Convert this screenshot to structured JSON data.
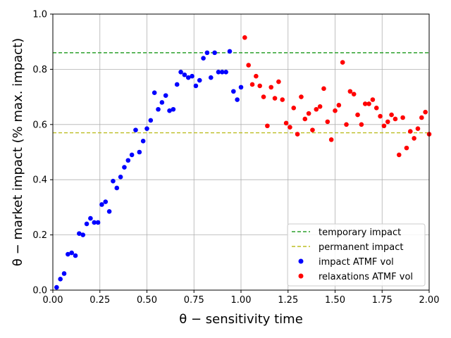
{
  "chart_data": {
    "type": "scatter",
    "xlabel": "θ − sensitivity time",
    "ylabel": "θ − market impact (% max. impact)",
    "xlim": [
      0,
      2
    ],
    "ylim": [
      0,
      1
    ],
    "grid": true,
    "legend_position": "lower-right",
    "x_ticks": [
      "0.00",
      "0.25",
      "0.50",
      "0.75",
      "1.00",
      "1.25",
      "1.50",
      "1.75",
      "2.00"
    ],
    "y_ticks": [
      "0.0",
      "0.2",
      "0.4",
      "0.6",
      "0.8",
      "1.0"
    ],
    "hlines": [
      {
        "name": "temporary impact",
        "y": 0.86,
        "color": "#2ca02c",
        "style": "dashed"
      },
      {
        "name": "permanent impact",
        "y": 0.57,
        "color": "#bcbd22",
        "style": "dashed"
      }
    ],
    "series": [
      {
        "name": "impact ATMF vol",
        "color": "#0000ff",
        "points": [
          [
            0.02,
            0.01
          ],
          [
            0.04,
            0.04
          ],
          [
            0.06,
            0.06
          ],
          [
            0.08,
            0.13
          ],
          [
            0.1,
            0.135
          ],
          [
            0.12,
            0.125
          ],
          [
            0.14,
            0.205
          ],
          [
            0.16,
            0.2
          ],
          [
            0.18,
            0.24
          ],
          [
            0.2,
            0.26
          ],
          [
            0.22,
            0.245
          ],
          [
            0.24,
            0.245
          ],
          [
            0.26,
            0.31
          ],
          [
            0.28,
            0.32
          ],
          [
            0.3,
            0.285
          ],
          [
            0.32,
            0.395
          ],
          [
            0.34,
            0.37
          ],
          [
            0.36,
            0.41
          ],
          [
            0.38,
            0.445
          ],
          [
            0.4,
            0.47
          ],
          [
            0.42,
            0.49
          ],
          [
            0.44,
            0.58
          ],
          [
            0.46,
            0.5
          ],
          [
            0.48,
            0.54
          ],
          [
            0.5,
            0.585
          ],
          [
            0.52,
            0.615
          ],
          [
            0.54,
            0.715
          ],
          [
            0.56,
            0.655
          ],
          [
            0.58,
            0.68
          ],
          [
            0.6,
            0.705
          ],
          [
            0.62,
            0.65
          ],
          [
            0.64,
            0.655
          ],
          [
            0.66,
            0.745
          ],
          [
            0.68,
            0.79
          ],
          [
            0.7,
            0.78
          ],
          [
            0.72,
            0.77
          ],
          [
            0.74,
            0.775
          ],
          [
            0.76,
            0.74
          ],
          [
            0.78,
            0.76
          ],
          [
            0.8,
            0.84
          ],
          [
            0.82,
            0.86
          ],
          [
            0.84,
            0.77
          ],
          [
            0.86,
            0.86
          ],
          [
            0.88,
            0.79
          ],
          [
            0.9,
            0.79
          ],
          [
            0.92,
            0.79
          ],
          [
            0.94,
            0.865
          ],
          [
            0.96,
            0.72
          ],
          [
            0.98,
            0.69
          ],
          [
            1.0,
            0.735
          ]
        ]
      },
      {
        "name": "relaxations ATMF vol",
        "color": "#ff0000",
        "points": [
          [
            1.02,
            0.915
          ],
          [
            1.04,
            0.815
          ],
          [
            1.06,
            0.745
          ],
          [
            1.08,
            0.775
          ],
          [
            1.1,
            0.74
          ],
          [
            1.12,
            0.7
          ],
          [
            1.14,
            0.595
          ],
          [
            1.16,
            0.735
          ],
          [
            1.18,
            0.695
          ],
          [
            1.2,
            0.755
          ],
          [
            1.22,
            0.69
          ],
          [
            1.24,
            0.605
          ],
          [
            1.26,
            0.59
          ],
          [
            1.28,
            0.66
          ],
          [
            1.3,
            0.565
          ],
          [
            1.32,
            0.7
          ],
          [
            1.34,
            0.62
          ],
          [
            1.36,
            0.64
          ],
          [
            1.38,
            0.58
          ],
          [
            1.4,
            0.655
          ],
          [
            1.42,
            0.665
          ],
          [
            1.44,
            0.73
          ],
          [
            1.46,
            0.61
          ],
          [
            1.48,
            0.545
          ],
          [
            1.5,
            0.65
          ],
          [
            1.52,
            0.67
          ],
          [
            1.54,
            0.825
          ],
          [
            1.56,
            0.6
          ],
          [
            1.58,
            0.72
          ],
          [
            1.6,
            0.71
          ],
          [
            1.62,
            0.635
          ],
          [
            1.64,
            0.6
          ],
          [
            1.66,
            0.675
          ],
          [
            1.68,
            0.675
          ],
          [
            1.7,
            0.69
          ],
          [
            1.72,
            0.66
          ],
          [
            1.74,
            0.63
          ],
          [
            1.76,
            0.595
          ],
          [
            1.78,
            0.61
          ],
          [
            1.8,
            0.635
          ],
          [
            1.82,
            0.62
          ],
          [
            1.84,
            0.49
          ],
          [
            1.86,
            0.625
          ],
          [
            1.88,
            0.515
          ],
          [
            1.9,
            0.575
          ],
          [
            1.92,
            0.55
          ],
          [
            1.94,
            0.585
          ],
          [
            1.96,
            0.625
          ],
          [
            1.98,
            0.645
          ],
          [
            2.0,
            0.565
          ]
        ]
      }
    ]
  }
}
